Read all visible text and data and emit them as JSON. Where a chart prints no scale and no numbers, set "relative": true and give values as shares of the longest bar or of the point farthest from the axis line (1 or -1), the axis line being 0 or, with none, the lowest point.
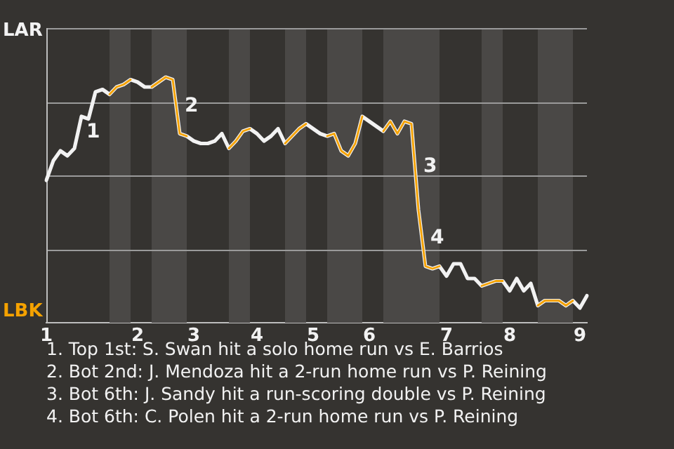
{
  "chart_data": {
    "type": "line",
    "relative": true,
    "categories": [
      "1",
      null,
      null,
      null,
      null,
      null,
      null,
      null,
      null,
      null,
      null,
      null,
      null,
      "2",
      null,
      null,
      null,
      null,
      null,
      null,
      null,
      "3",
      null,
      null,
      null,
      null,
      null,
      null,
      null,
      null,
      "4",
      null,
      null,
      null,
      null,
      null,
      null,
      null,
      "5",
      null,
      null,
      null,
      null,
      null,
      null,
      null,
      "6",
      null,
      null,
      null,
      null,
      null,
      null,
      null,
      null,
      null,
      null,
      "7",
      null,
      null,
      null,
      null,
      null,
      null,
      null,
      null,
      "8",
      null,
      null,
      null,
      null,
      null,
      null,
      null,
      null,
      null,
      "9",
      null
    ],
    "series": [
      {
        "name": "LAR",
        "color": "#f2f2f2",
        "values": [
          0.58,
          0.66,
          0.7,
          0.68,
          0.71,
          0.84,
          0.83,
          0.94,
          0.95,
          0.93,
          0.96,
          0.97,
          0.99,
          0.98,
          0.96,
          0.96,
          0.98,
          1,
          0.99,
          0.77,
          0.76,
          0.74,
          0.73,
          0.73,
          0.74,
          0.77,
          0.71,
          0.74,
          0.78,
          0.79,
          0.77,
          0.74,
          0.76,
          0.79,
          0.73,
          0.76,
          0.79,
          0.81,
          0.79,
          0.77,
          0.76,
          0.77,
          0.7,
          0.68,
          0.73,
          0.84,
          0.82,
          0.8,
          0.78,
          0.82,
          0.77,
          0.82,
          0.81,
          0.46,
          0.23,
          0.22,
          0.23,
          0.19,
          0.24,
          0.24,
          0.18,
          0.18,
          0.15,
          0.16,
          0.17,
          0.17,
          0.13,
          0.18,
          0.13,
          0.16,
          0.07,
          0.09,
          0.09,
          0.09,
          0.07,
          0.09,
          0.06,
          0.11
        ]
      },
      {
        "name": "LBK",
        "color": "#f5a200",
        "values": [
          null,
          null,
          null,
          null,
          null,
          null,
          null,
          null,
          null,
          0.93,
          0.96,
          0.97,
          0.99,
          null,
          null,
          0.96,
          0.98,
          1,
          0.99,
          0.77,
          0.76,
          null,
          null,
          null,
          null,
          null,
          0.71,
          0.74,
          0.78,
          0.79,
          null,
          null,
          null,
          null,
          0.73,
          0.76,
          0.79,
          0.81,
          null,
          null,
          0.76,
          0.77,
          0.7,
          0.68,
          0.73,
          0.84,
          null,
          null,
          0.78,
          0.82,
          0.77,
          0.82,
          0.81,
          0.46,
          0.23,
          0.22,
          0.23,
          null,
          null,
          null,
          null,
          null,
          0.15,
          0.16,
          0.17,
          0.17,
          null,
          null,
          null,
          null,
          0.07,
          0.09,
          0.09,
          0.09,
          0.07,
          0.09,
          null,
          null
        ]
      }
    ],
    "grid": "y",
    "legend": false,
    "marker": "none",
    "line_style": "solid",
    "annotations": [
      {
        "text": "1"
      },
      {
        "text": "2"
      },
      {
        "text": "3"
      },
      {
        "text": "4"
      },
      "1. Top 1st: S. Swan hit a solo home run vs E. Barrios",
      "2. Bot 2nd: J. Mendoza hit a 2-run home run vs P. Reining",
      "3. Bot 6th: J. Sandy hit a run-scoring double vs P. Reining",
      "4. Bot 6th: C. Polen hit a 2-run home run vs P. Reining"
    ]
  }
}
